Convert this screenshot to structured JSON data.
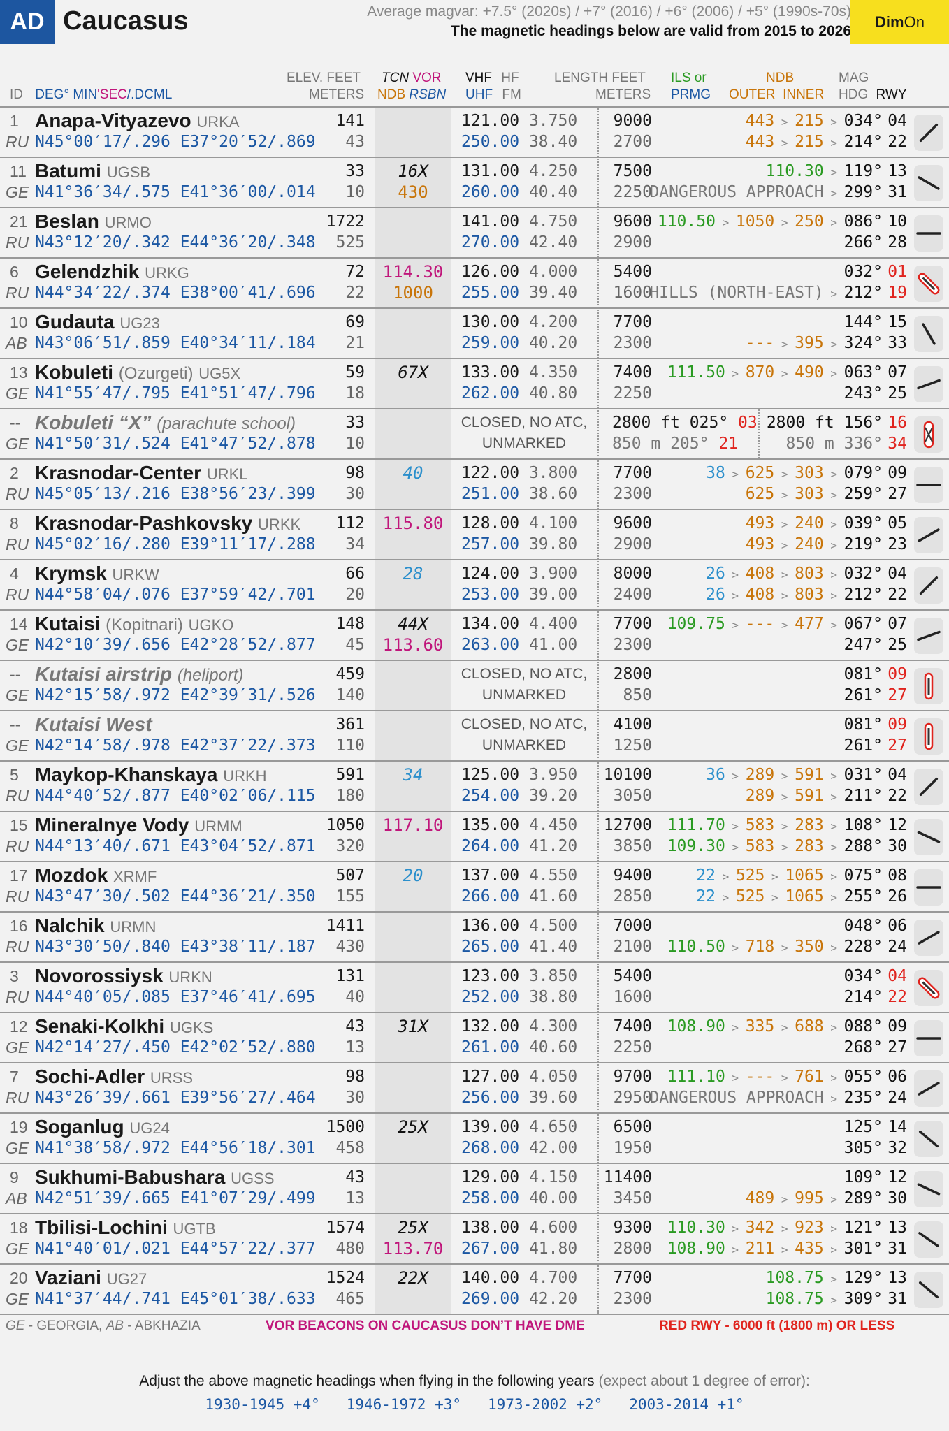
{
  "header": {
    "badge": "AD",
    "title": "Caucasus",
    "magvar": "Average magvar: +7.5° (2020s)  / +7° (2016)  / +6° (2006)  / +5° (1990s-70s)",
    "valid": "The magnetic headings below are valid from 2015 to 2026",
    "dim": "Dim",
    "on": "On"
  },
  "columns": {
    "elev_top": "ELEV. FEET",
    "elev_bot": "METERS",
    "tcn_top": "TCN",
    "vor_top": "VOR",
    "ndb_bot": "NDB",
    "rsbn_bot": "RSBN",
    "vhf": "VHF",
    "uhf": "UHF",
    "hf": "HF",
    "fm": "FM",
    "len_top": "LENGTH FEET",
    "len_bot": "METERS",
    "ils_top": "ILS or",
    "ils_bot": "PRMG",
    "ndb_top": "NDB",
    "outer": "OUTER",
    "inner": "INNER",
    "mag_top": "MAG",
    "mag_bot": "HDG",
    "rwy": "RWY",
    "id": "ID",
    "deg": "DEG°",
    "min": "MIN",
    "sec": "'SEC",
    "dcml": "/.DCML"
  },
  "airports": [
    {
      "id": "1",
      "cty": "RU",
      "name": "Anapa-Vityazevo",
      "icao": "URKA",
      "crd": "N45°00′17/.296 E37°20′52/.869",
      "ft": "141",
      "m": "43",
      "tcn1": "",
      "tcn2": "",
      "vhf": "121.00",
      "hf": "3.750",
      "uhf": "250.00",
      "fm": "38.40",
      "len1": "9000",
      "len2": "2700",
      "nav1": "443 > 215 > 034°",
      "nav2": "443 > 215 > 214°",
      "r1": "04",
      "r2": "22"
    },
    {
      "id": "11",
      "cty": "GE",
      "name": "Batumi",
      "icao": "UGSB",
      "crd": "N41°36′34/.575 E41°36′00/.014",
      "ft": "33",
      "m": "10",
      "tcn1": "16X",
      "tcn2": "430",
      "vhf": "131.00",
      "hf": "4.250",
      "uhf": "260.00",
      "fm": "40.40",
      "len1": "7500",
      "len2": "2250",
      "nav1": "110.30 > 119°",
      "nav2": "DANGEROUS APPROACH > 299°",
      "r1": "13",
      "r2": "31"
    },
    {
      "id": "21",
      "cty": "RU",
      "name": "Beslan",
      "icao": "URMO",
      "crd": "N43°12′20/.342 E44°36′20/.348",
      "ft": "1722",
      "m": "525",
      "tcn1": "",
      "tcn2": "",
      "vhf": "141.00",
      "hf": "4.750",
      "uhf": "270.00",
      "fm": "42.40",
      "len1": "9600",
      "len2": "2900",
      "nav1": "110.50 > 1050 > 250 > 086°",
      "nav2": "266°",
      "r1": "10",
      "r2": "28"
    },
    {
      "id": "6",
      "cty": "RU",
      "name": "Gelendzhik",
      "icao": "URKG",
      "crd": "N44°34′22/.374 E38°00′41/.696",
      "ft": "72",
      "m": "22",
      "tcn1": "114.30",
      "tcn2": "1000",
      "vhf": "126.00",
      "hf": "4.000",
      "uhf": "255.00",
      "fm": "39.40",
      "len1": "5400",
      "len2": "1600",
      "nav1": "032°",
      "nav2": "HILLS (NORTH-EAST) > 212°",
      "r1": "01",
      "r2": "19"
    },
    {
      "id": "10",
      "cty": "AB",
      "name": "Gudauta",
      "icao": "UG23",
      "crd": "N43°06′51/.859 E40°34′11/.184",
      "ft": "69",
      "m": "21",
      "tcn1": "",
      "tcn2": "",
      "vhf": "130.00",
      "hf": "4.200",
      "uhf": "259.00",
      "fm": "40.20",
      "len1": "7700",
      "len2": "2300",
      "nav1": "144°",
      "nav2": "--- > 395 > 324°",
      "r1": "15",
      "r2": "33"
    },
    {
      "id": "13",
      "cty": "GE",
      "name": "Kobuleti",
      "alt": "(Ozurgeti)",
      "icao": "UG5X",
      "crd": "N41°55′47/.795 E41°51′47/.796",
      "ft": "59",
      "m": "18",
      "tcn1": "67X",
      "tcn2": "",
      "vhf": "133.00",
      "hf": "4.350",
      "uhf": "262.00",
      "fm": "40.80",
      "len1": "7400",
      "len2": "2250",
      "nav1": "111.50 > 870 > 490 > 063°",
      "nav2": "243°",
      "r1": "07",
      "r2": "25"
    },
    {
      "id": "--",
      "cty": "GE",
      "name": "Kobuleti “X”",
      "alt": "(parachute school)",
      "icao": "",
      "crd": "N41°50′31/.524 E41°47′52/.878",
      "ft": "33",
      "m": "10",
      "closed1": "CLOSED, NO ATC,",
      "closed2": "UNMARKED",
      "xa1": "2800 ft  025°",
      "xr1": "03",
      "xa2": "850 m   205°",
      "xr2": "21",
      "nav1": "2800 ft 156°",
      "nav2": "850 m   336°",
      "r1": "16",
      "r2": "34"
    },
    {
      "id": "2",
      "cty": "RU",
      "name": "Krasnodar-Center",
      "icao": "URKL",
      "crd": "N45°05′13/.216 E38°56′23/.399",
      "ft": "98",
      "m": "30",
      "tcn1": "40",
      "tcn2": "",
      "vhf": "122.00",
      "hf": "3.800",
      "uhf": "251.00",
      "fm": "38.60",
      "len1": "7700",
      "len2": "2300",
      "nav1": "38 > 625 > 303 > 079°",
      "nav2": "625 > 303 > 259°",
      "r1": "09",
      "r2": "27"
    },
    {
      "id": "8",
      "cty": "RU",
      "name": "Krasnodar-Pashkovsky",
      "icao": "URKK",
      "crd": "N45°02′16/.280 E39°11′17/.288",
      "ft": "112",
      "m": "34",
      "tcn1": "115.80",
      "tcn2": "",
      "vhf": "128.00",
      "hf": "4.100",
      "uhf": "257.00",
      "fm": "39.80",
      "len1": "9600",
      "len2": "2900",
      "nav1": "493 > 240 > 039°",
      "nav2": "493 > 240 > 219°",
      "r1": "05",
      "r2": "23"
    },
    {
      "id": "4",
      "cty": "RU",
      "name": "Krymsk",
      "icao": "URKW",
      "crd": "N44°58′04/.076 E37°59′42/.701",
      "ft": "66",
      "m": "20",
      "tcn1": "28",
      "tcn2": "",
      "vhf": "124.00",
      "hf": "3.900",
      "uhf": "253.00",
      "fm": "39.00",
      "len1": "8000",
      "len2": "2400",
      "nav1": "26 > 408 > 803 > 032°",
      "nav2": "26 > 408 > 803 > 212°",
      "r1": "04",
      "r2": "22"
    },
    {
      "id": "14",
      "cty": "GE",
      "name": "Kutaisi",
      "alt": "(Kopitnari)",
      "icao": "UGKO",
      "crd": "N42°10′39/.656 E42°28′52/.877",
      "ft": "148",
      "m": "45",
      "tcn1": "44X",
      "tcn2": "113.60",
      "vhf": "134.00",
      "hf": "4.400",
      "uhf": "263.00",
      "fm": "41.00",
      "len1": "7700",
      "len2": "2300",
      "nav1": "109.75 > --- > 477 > 067°",
      "nav2": "247°",
      "r1": "07",
      "r2": "25"
    },
    {
      "id": "--",
      "cty": "GE",
      "name": "Kutaisi airstrip",
      "alt": "(heliport)",
      "icao": "",
      "crd": "N42°15′58/.972 E42°39′31/.526",
      "ft": "459",
      "m": "140",
      "closed1": "CLOSED, NO ATC,",
      "closed2": "UNMARKED",
      "len1": "2800",
      "len2": "850",
      "nav1": "081°",
      "nav2": "261°",
      "r1": "09",
      "r2": "27"
    },
    {
      "id": "--",
      "cty": "GE",
      "name": "Kutaisi West",
      "icao": "",
      "crd": "N42°14′58/.978 E42°37′22/.373",
      "ft": "361",
      "m": "110",
      "closed1": "CLOSED, NO ATC,",
      "closed2": "UNMARKED",
      "len1": "4100",
      "len2": "1250",
      "nav1": "081°",
      "nav2": "261°",
      "r1": "09",
      "r2": "27"
    },
    {
      "id": "5",
      "cty": "RU",
      "name": "Maykop-Khanskaya",
      "icao": "URKH",
      "crd": "N44°40′52/.877 E40°02′06/.115",
      "ft": "591",
      "m": "180",
      "tcn1": "34",
      "tcn2": "",
      "vhf": "125.00",
      "hf": "3.950",
      "uhf": "254.00",
      "fm": "39.20",
      "len1": "10100",
      "len2": "3050",
      "nav1": "36 > 289 > 591 > 031°",
      "nav2": "289 > 591 > 211°",
      "r1": "04",
      "r2": "22"
    },
    {
      "id": "15",
      "cty": "RU",
      "name": "Mineralnye Vody",
      "icao": "URMM",
      "crd": "N44°13′40/.671 E43°04′52/.871",
      "ft": "1050",
      "m": "320",
      "tcn1": "117.10",
      "tcn2": "",
      "vhf": "135.00",
      "hf": "4.450",
      "uhf": "264.00",
      "fm": "41.20",
      "len1": "12700",
      "len2": "3850",
      "nav1": "111.70 > 583 > 283 > 108°",
      "nav2": "109.30 > 583 > 283 > 288°",
      "r1": "12",
      "r2": "30"
    },
    {
      "id": "17",
      "cty": "RU",
      "name": "Mozdok",
      "icao": "XRMF",
      "crd": "N43°47′30/.502 E44°36′21/.350",
      "ft": "507",
      "m": "155",
      "tcn1": "20",
      "tcn2": "",
      "vhf": "137.00",
      "hf": "4.550",
      "uhf": "266.00",
      "fm": "41.60",
      "len1": "9400",
      "len2": "2850",
      "nav1": "22 > 525 > 1065 > 075°",
      "nav2": "22 > 525 > 1065 > 255°",
      "r1": "08",
      "r2": "26"
    },
    {
      "id": "16",
      "cty": "RU",
      "name": "Nalchik",
      "icao": "URMN",
      "crd": "N43°30′50/.840 E43°38′11/.187",
      "ft": "1411",
      "m": "430",
      "tcn1": "",
      "tcn2": "",
      "vhf": "136.00",
      "hf": "4.500",
      "uhf": "265.00",
      "fm": "41.40",
      "len1": "7000",
      "len2": "2100",
      "nav1": "048°",
      "nav2": "110.50 > 718 > 350 > 228°",
      "r1": "06",
      "r2": "24"
    },
    {
      "id": "3",
      "cty": "RU",
      "name": "Novorossiysk",
      "icao": "URKN",
      "crd": "N44°40′05/.085 E37°46′41/.695",
      "ft": "131",
      "m": "40",
      "tcn1": "",
      "tcn2": "",
      "vhf": "123.00",
      "hf": "3.850",
      "uhf": "252.00",
      "fm": "38.80",
      "len1": "5400",
      "len2": "1600",
      "nav1": "034°",
      "nav2": "214°",
      "r1": "04",
      "r2": "22"
    },
    {
      "id": "12",
      "cty": "GE",
      "name": "Senaki-Kolkhi",
      "icao": "UGKS",
      "crd": "N42°14′27/.450 E42°02′52/.880",
      "ft": "43",
      "m": "13",
      "tcn1": "31X",
      "tcn2": "",
      "vhf": "132.00",
      "hf": "4.300",
      "uhf": "261.00",
      "fm": "40.60",
      "len1": "7400",
      "len2": "2250",
      "nav1": "108.90 > 335 > 688 > 088°",
      "nav2": "268°",
      "r1": "09",
      "r2": "27"
    },
    {
      "id": "7",
      "cty": "RU",
      "name": "Sochi-Adler",
      "icao": "URSS",
      "crd": "N43°26′39/.661 E39°56′27/.464",
      "ft": "98",
      "m": "30",
      "tcn1": "",
      "tcn2": "",
      "vhf": "127.00",
      "hf": "4.050",
      "uhf": "256.00",
      "fm": "39.60",
      "len1": "9700",
      "len2": "2950",
      "nav1": "111.10 > --- > 761 > 055°",
      "nav2": "DANGEROUS APPROACH > 235°",
      "r1": "06",
      "r2": "24"
    },
    {
      "id": "19",
      "cty": "GE",
      "name": "Soganlug",
      "icao": "UG24",
      "crd": "N41°38′58/.972 E44°56′18/.301",
      "ft": "1500",
      "m": "458",
      "tcn1": "25X",
      "tcn2": "",
      "vhf": "139.00",
      "hf": "4.650",
      "uhf": "268.00",
      "fm": "42.00",
      "len1": "6500",
      "len2": "1950",
      "nav1": "125°",
      "nav2": "305°",
      "r1": "14",
      "r2": "32"
    },
    {
      "id": "9",
      "cty": "AB",
      "name": "Sukhumi-Babushara",
      "icao": "UGSS",
      "crd": "N42°51′39/.665 E41°07′29/.499",
      "ft": "43",
      "m": "13",
      "tcn1": "",
      "tcn2": "",
      "vhf": "129.00",
      "hf": "4.150",
      "uhf": "258.00",
      "fm": "40.00",
      "len1": "11400",
      "len2": "3450",
      "nav1": "109°",
      "nav2": "489 > 995 > 289°",
      "r1": "12",
      "r2": "30"
    },
    {
      "id": "18",
      "cty": "GE",
      "name": "Tbilisi-Lochini",
      "icao": "UGTB",
      "crd": "N41°40′01/.021 E44°57′22/.377",
      "ft": "1574",
      "m": "480",
      "tcn1": "25X",
      "tcn2": "113.70",
      "vhf": "138.00",
      "hf": "4.600",
      "uhf": "267.00",
      "fm": "41.80",
      "len1": "9300",
      "len2": "2800",
      "nav1": "110.30 > 342 > 923 > 121°",
      "nav2": "108.90 > 211 > 435 > 301°",
      "r1": "13",
      "r2": "31"
    },
    {
      "id": "20",
      "cty": "GE",
      "name": "Vaziani",
      "icao": "UG27",
      "crd": "N41°37′44/.741 E45°01′38/.633",
      "ft": "1524",
      "m": "465",
      "tcn1": "22X",
      "tcn2": "",
      "vhf": "140.00",
      "hf": "4.700",
      "uhf": "269.00",
      "fm": "42.20",
      "len1": "7700",
      "len2": "2300",
      "nav1": "108.75 > 129°",
      "nav2": "108.75 > 309°",
      "r1": "13",
      "r2": "31"
    }
  ],
  "footer": {
    "countries_ge": "GE",
    "countries_ge_t": " - GEORGIA, ",
    "countries_ab": "AB",
    "countries_ab_t": " - ABKHAZIA",
    "vor_note": "VOR BEACONS ON CAUCASUS DON’T HAVE DME",
    "red_note": "RED RWY - 6000 ft (1800 m) OR LESS",
    "adjust": "Adjust the above magnetic headings when flying in the following years",
    "adjust_note": "(expect about 1 degree of error):",
    "years": "1930-1945 +4°   1946-1972 +3°   1973-2002 +2°   2003-2014 +1°"
  }
}
